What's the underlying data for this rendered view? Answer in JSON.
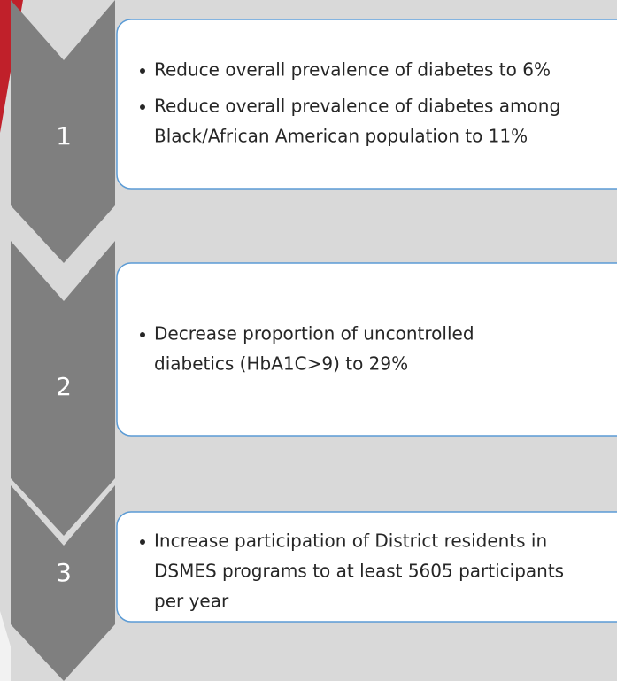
{
  "steps": [
    {
      "number": "1",
      "bullets": [
        {
          "lines": [
            "Reduce overall prevalence of diabetes to 6%"
          ]
        },
        {
          "lines": [
            "Reduce overall prevalence of diabetes among",
            "Black/African American population to 11%"
          ]
        }
      ]
    },
    {
      "number": "2",
      "bullets": [
        {
          "lines": [
            "Decrease proportion of uncontrolled",
            "diabetics (HbA1C>9) to 29%"
          ]
        }
      ]
    },
    {
      "number": "3",
      "bullets": [
        {
          "lines": [
            "Increase participation of District residents in",
            "DSMES programs to at least 5605 participants",
            "per year"
          ]
        }
      ]
    }
  ]
}
